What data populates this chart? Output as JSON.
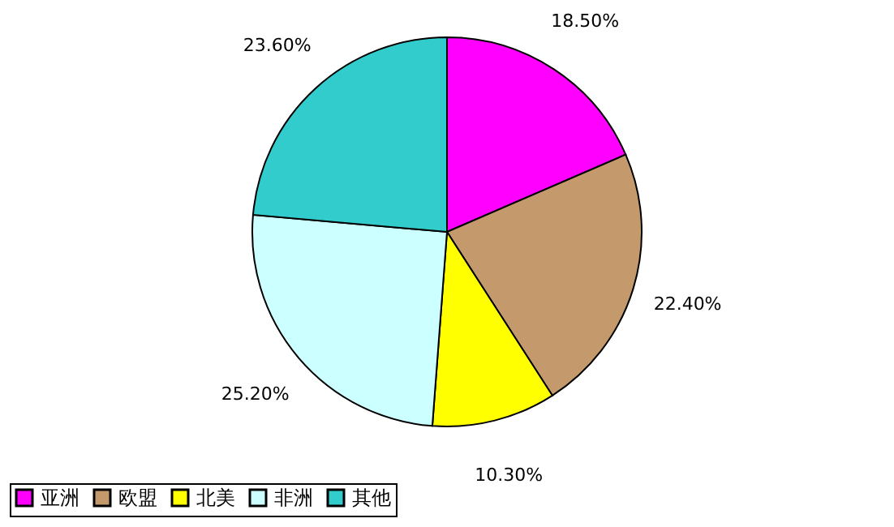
{
  "chart_data": {
    "type": "pie",
    "categories": [
      "亚洲",
      "欧盟",
      "北美",
      "非洲",
      "其他"
    ],
    "values": [
      18.5,
      22.4,
      10.3,
      25.2,
      23.6
    ],
    "value_labels": [
      "18.50%",
      "22.40%",
      "10.30%",
      "25.20%",
      "23.60%"
    ],
    "colors": [
      "#ff00ff",
      "#c49a6c",
      "#ffff00",
      "#ccffff",
      "#33cccc"
    ],
    "legend": "bottom"
  }
}
